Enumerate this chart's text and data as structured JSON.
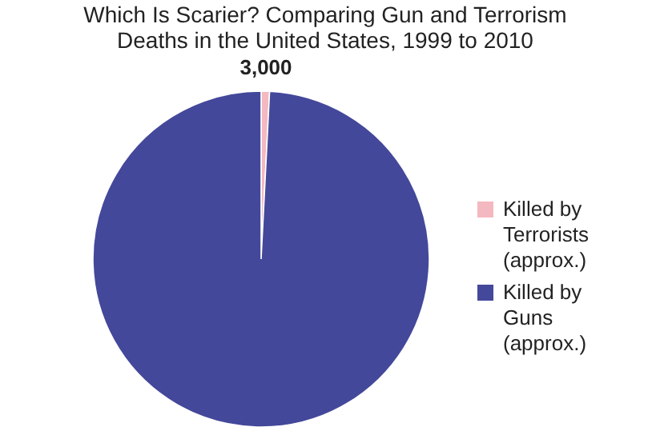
{
  "chart_data": {
    "type": "pie",
    "title": "Which Is Scarier? Comparing Gun and Terrorism Deaths in the United States, 1999 to 2010",
    "categories": [
      "Killed by Terrorists (approx.)",
      "Killed by Guns (approx.)"
    ],
    "values": [
      3000,
      370000
    ],
    "colors": [
      "#f4b8c0",
      "#44489a"
    ],
    "value_labels": [
      "3,000",
      null
    ],
    "legend": "right"
  }
}
